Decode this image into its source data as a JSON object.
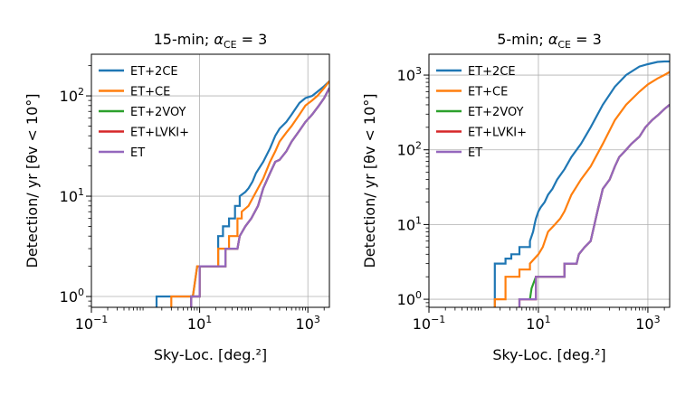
{
  "figure": {
    "ylabel": "Detection/ yr [θv < 10°]"
  },
  "chart_data": [
    {
      "type": "line",
      "title_parts": {
        "pre": "15-min; ",
        "alpha": "α",
        "sub": "CE",
        "post": " = 3"
      },
      "xlabel": "Sky-Loc. [deg.²]",
      "ylabel": "Detection/ yr [θv < 10°]",
      "xscale": "log",
      "yscale": "log",
      "xlim": [
        0.1,
        2500
      ],
      "ylim": [
        0.78,
        260
      ],
      "xticks": [
        {
          "v": 0.1,
          "base": "10",
          "exp": "−1"
        },
        {
          "v": 10,
          "base": "10",
          "exp": "1"
        },
        {
          "v": 1000,
          "base": "10",
          "exp": "3"
        }
      ],
      "yticks": [
        {
          "v": 1,
          "base": "10",
          "exp": "0"
        },
        {
          "v": 10,
          "base": "10",
          "exp": "1"
        },
        {
          "v": 100,
          "base": "10",
          "exp": "2"
        }
      ],
      "grid": true,
      "legend": "top-left",
      "series": [
        {
          "name": "ET+2CE",
          "color": "#1f77b4",
          "x": [
            1.6,
            1.6,
            2.5,
            3,
            3,
            7.5,
            9,
            22,
            22,
            27,
            27,
            35,
            35,
            45,
            45,
            55,
            55,
            70,
            80,
            95,
            110,
            150,
            200,
            250,
            300,
            400,
            500,
            700,
            900,
            1200,
            1500,
            2000,
            2500
          ],
          "y": [
            0.78,
            1,
            1,
            1,
            1,
            1,
            2,
            2,
            4,
            4,
            5,
            5,
            6,
            6,
            8,
            8,
            10,
            11,
            12,
            14,
            17,
            22,
            30,
            40,
            47,
            55,
            65,
            85,
            95,
            100,
            110,
            125,
            140
          ]
        },
        {
          "name": "ET+CE",
          "color": "#ff7f0e",
          "x": [
            3,
            3,
            5,
            6,
            6,
            7.5,
            9,
            22,
            22,
            35,
            35,
            50,
            50,
            60,
            60,
            80,
            100,
            150,
            200,
            250,
            300,
            400,
            500,
            700,
            900,
            1200,
            1500,
            2000,
            2500
          ],
          "y": [
            0.78,
            1,
            1,
            1,
            1,
            1,
            2,
            2,
            3,
            3,
            4,
            4,
            6,
            6,
            7,
            8,
            10,
            15,
            22,
            28,
            35,
            43,
            50,
            65,
            80,
            90,
            100,
            120,
            140
          ]
        },
        {
          "name": "ET+2VOY",
          "color": "#2ca02c",
          "x": [
            7,
            7,
            9,
            10,
            10,
            30,
            30,
            50,
            55,
            70,
            90,
            120,
            150,
            200,
            250,
            300,
            400,
            500,
            700,
            900,
            1200,
            1600,
            2000,
            2500
          ],
          "y": [
            0.78,
            1,
            1,
            1,
            2,
            2,
            3,
            3,
            4,
            5,
            6,
            8,
            12,
            17,
            22,
            23,
            28,
            35,
            45,
            55,
            65,
            80,
            95,
            120
          ]
        },
        {
          "name": "ET+LVKI+",
          "color": "#d62728",
          "x": [
            7,
            7,
            9,
            10,
            10,
            30,
            30,
            50,
            55,
            70,
            90,
            120,
            150,
            200,
            250,
            300,
            400,
            500,
            700,
            900,
            1200,
            1600,
            2000,
            2500
          ],
          "y": [
            0.78,
            1,
            1,
            1,
            2,
            2,
            3,
            3,
            4,
            5,
            6,
            8,
            12,
            17,
            22,
            23,
            28,
            35,
            45,
            55,
            65,
            80,
            95,
            120
          ]
        },
        {
          "name": "ET",
          "color": "#9467bd",
          "x": [
            7,
            7,
            9,
            10,
            10,
            30,
            30,
            50,
            55,
            70,
            90,
            120,
            150,
            200,
            250,
            300,
            400,
            500,
            700,
            900,
            1200,
            1600,
            2000,
            2500
          ],
          "y": [
            0.78,
            1,
            1,
            1,
            2,
            2,
            3,
            3,
            4,
            5,
            6,
            8,
            12,
            17,
            22,
            23,
            28,
            35,
            45,
            55,
            65,
            80,
            95,
            120
          ]
        }
      ]
    },
    {
      "type": "line",
      "title_parts": {
        "pre": "5-min; ",
        "alpha": "α",
        "sub": "CE",
        "post": " = 3"
      },
      "xlabel": "Sky-Loc. [deg.²]",
      "ylabel": "Detection/ yr [θv < 10°]",
      "xscale": "log",
      "yscale": "log",
      "xlim": [
        0.1,
        2500
      ],
      "ylim": [
        0.78,
        1900
      ],
      "xticks": [
        {
          "v": 0.1,
          "base": "10",
          "exp": "−1"
        },
        {
          "v": 10,
          "base": "10",
          "exp": "1"
        },
        {
          "v": 1000,
          "base": "10",
          "exp": "3"
        }
      ],
      "yticks": [
        {
          "v": 1,
          "base": "10",
          "exp": "0"
        },
        {
          "v": 10,
          "base": "10",
          "exp": "1"
        },
        {
          "v": 100,
          "base": "10",
          "exp": "2"
        },
        {
          "v": 1000,
          "base": "10",
          "exp": "3"
        }
      ],
      "grid": true,
      "legend": "top-left",
      "series": [
        {
          "name": "ET+2CE",
          "color": "#1f77b4",
          "x": [
            1.6,
            1.6,
            2.5,
            2.5,
            3.2,
            3.2,
            4.5,
            4.5,
            7,
            7,
            8,
            8.5,
            9,
            10,
            11,
            13,
            15,
            18,
            22,
            30,
            40,
            60,
            90,
            150,
            250,
            400,
            700,
            1000,
            1500,
            2000,
            2500
          ],
          "y": [
            0.78,
            3,
            3,
            3.5,
            3.5,
            4,
            4,
            5,
            5,
            6,
            8,
            10,
            12,
            15,
            17,
            20,
            25,
            30,
            40,
            55,
            80,
            120,
            200,
            400,
            700,
            1000,
            1300,
            1400,
            1500,
            1520,
            1520
          ]
        },
        {
          "name": "ET+CE",
          "color": "#ff7f0e",
          "x": [
            1.6,
            1.6,
            2.5,
            2.5,
            4.5,
            4.5,
            7,
            7,
            10,
            12,
            15,
            20,
            25,
            30,
            40,
            60,
            90,
            150,
            250,
            400,
            700,
            1000,
            1500,
            2000,
            2500
          ],
          "y": [
            0.78,
            1,
            1,
            2,
            2,
            2.5,
            2.5,
            3,
            4,
            5,
            8,
            10,
            12,
            15,
            25,
            40,
            60,
            120,
            250,
            400,
            600,
            750,
            900,
            1000,
            1100
          ]
        },
        {
          "name": "ET+2VOY",
          "color": "#2ca02c",
          "x": [
            7,
            7.5,
            9,
            9,
            15,
            15,
            30,
            30,
            50,
            55,
            70,
            90,
            120,
            150,
            200,
            250,
            300,
            400,
            500,
            700,
            900,
            1200,
            1600,
            2000,
            2500
          ],
          "y": [
            1,
            1.4,
            2,
            2,
            2,
            2,
            2,
            3,
            3,
            4,
            5,
            6,
            15,
            30,
            40,
            60,
            80,
            100,
            120,
            150,
            200,
            250,
            300,
            350,
            400
          ]
        },
        {
          "name": "ET+LVKI+",
          "color": "#d62728",
          "x": [
            4.5,
            4.5,
            7,
            7,
            9,
            9,
            15,
            15,
            30,
            30,
            50,
            55,
            70,
            90,
            120,
            150,
            200,
            250,
            300,
            400,
            500,
            700,
            900,
            1200,
            1600,
            2000,
            2500
          ],
          "y": [
            0.78,
            1,
            1,
            1,
            1,
            2,
            2,
            2,
            2,
            3,
            3,
            4,
            5,
            6,
            15,
            30,
            40,
            60,
            80,
            100,
            120,
            150,
            200,
            250,
            300,
            350,
            400
          ]
        },
        {
          "name": "ET",
          "color": "#9467bd",
          "x": [
            4.5,
            4.5,
            7,
            7,
            9,
            9,
            15,
            15,
            30,
            30,
            50,
            55,
            70,
            90,
            120,
            150,
            200,
            250,
            300,
            400,
            500,
            700,
            900,
            1200,
            1600,
            2000,
            2500
          ],
          "y": [
            0.78,
            1,
            1,
            1,
            1,
            2,
            2,
            2,
            2,
            3,
            3,
            4,
            5,
            6,
            15,
            30,
            40,
            60,
            80,
            100,
            120,
            150,
            200,
            250,
            300,
            350,
            400
          ]
        }
      ]
    }
  ]
}
